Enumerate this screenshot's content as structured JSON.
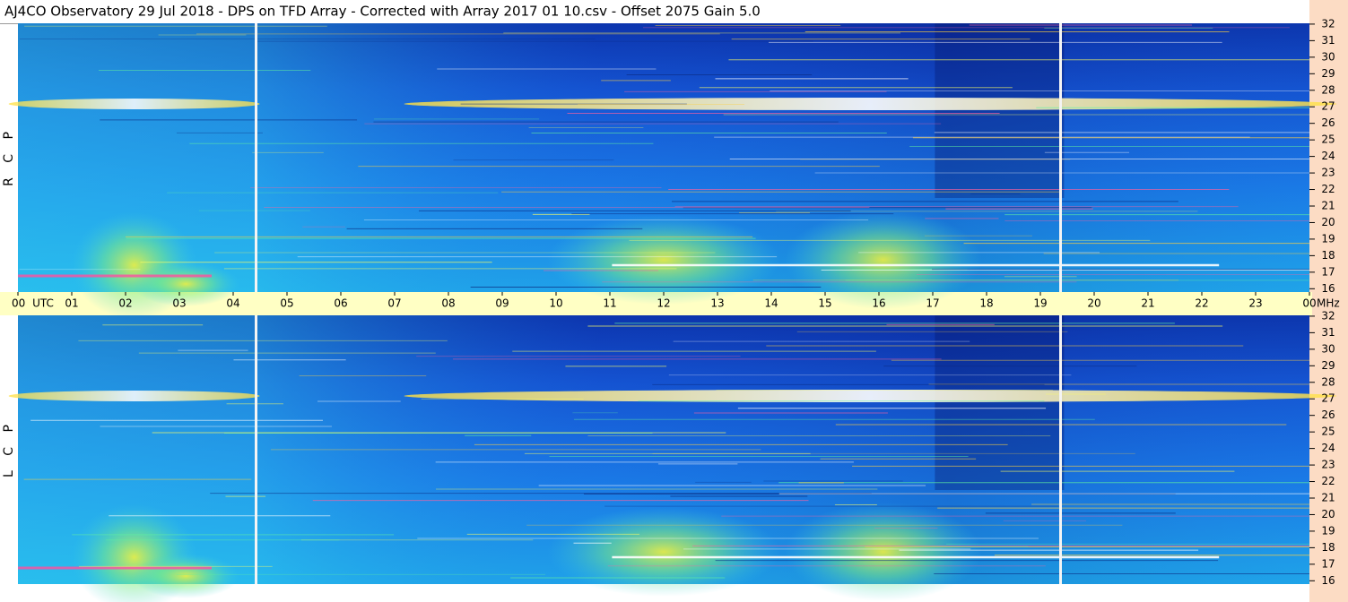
{
  "chart_data": {
    "type": "spectrogram",
    "title": "AJ4CO Observatory  29 Jul 2018  -  DPS on TFD Array  -  Corrected with Array 2017 01 10.csv  -  Offset 2075  Gain 5.0",
    "panels": [
      {
        "name": "R C P"
      },
      {
        "name": "L C P"
      }
    ],
    "xlim": [
      0,
      24
    ],
    "xticks": [
      {
        "value": 0,
        "label": "00 UTC"
      },
      {
        "value": 1,
        "label": "01"
      },
      {
        "value": 2,
        "label": "02"
      },
      {
        "value": 3,
        "label": "03"
      },
      {
        "value": 4,
        "label": "04"
      },
      {
        "value": 5,
        "label": "05"
      },
      {
        "value": 6,
        "label": "06"
      },
      {
        "value": 7,
        "label": "07"
      },
      {
        "value": 8,
        "label": "08"
      },
      {
        "value": 9,
        "label": "09"
      },
      10,
      11,
      12,
      13,
      14,
      15,
      16,
      17,
      18,
      19,
      20,
      21,
      22,
      23,
      {
        "value": 24,
        "label": "00"
      }
    ],
    "y_label": "MHz",
    "ylim": [
      15.8,
      32.05
    ],
    "yticks": [
      16,
      17,
      18,
      19,
      20,
      21,
      22,
      23,
      24,
      25,
      26,
      27,
      28,
      29,
      30,
      31,
      32
    ]
  }
}
